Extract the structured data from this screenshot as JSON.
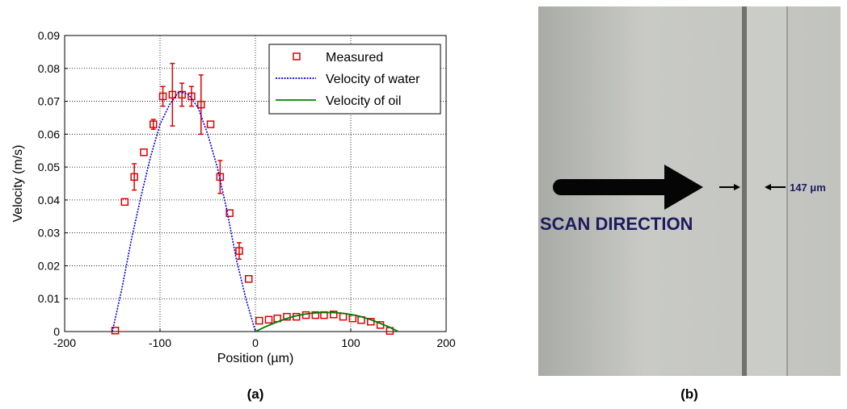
{
  "chart_data": {
    "type": "line",
    "xlabel": "Position (µm)",
    "ylabel": "Velocity (m/s)",
    "xlim": [
      -200,
      200
    ],
    "xticks": [
      -200,
      -100,
      0,
      100,
      200
    ],
    "ylim": [
      0,
      0.09
    ],
    "yticks": [
      0,
      0.01,
      0.02,
      0.03,
      0.04,
      0.05,
      0.06,
      0.07,
      0.08,
      0.09
    ],
    "grid": true,
    "legend": "upper right",
    "series": [
      {
        "name": "Measured",
        "type": "scatter",
        "color": "#e00000",
        "x": [
          -147,
          -137,
          -127,
          -117,
          -107,
          -97,
          -87,
          -77,
          -67,
          -57,
          -47,
          -37,
          -27,
          -17,
          -7,
          4,
          14,
          23,
          33,
          43,
          53,
          63,
          72,
          82,
          92,
          102,
          111,
          121,
          131,
          141
        ],
        "values": [
          0.0003,
          0.0394,
          0.047,
          0.0545,
          0.063,
          0.0715,
          0.072,
          0.072,
          0.0715,
          0.069,
          0.063,
          0.047,
          0.036,
          0.0245,
          0.016,
          0.0033,
          0.0036,
          0.004,
          0.0045,
          0.0045,
          0.005,
          0.005,
          0.005,
          0.0052,
          0.0045,
          0.004,
          0.0035,
          0.003,
          0.002,
          0.0002
        ],
        "errors": [
          null,
          null,
          0.004,
          null,
          0.0015,
          0.003,
          0.0095,
          0.0035,
          0.003,
          0.009,
          null,
          0.005,
          null,
          0.0025,
          null,
          null,
          null,
          null,
          null,
          null,
          null,
          null,
          null,
          null,
          null,
          null,
          null,
          null,
          null,
          null
        ]
      },
      {
        "name": "Velocity of water",
        "type": "line",
        "color": "#0000e0",
        "dash": true,
        "x": [
          -150,
          -140,
          -130,
          -120,
          -110,
          -100,
          -90,
          -80,
          -70,
          -60,
          -50,
          -40,
          -30,
          -20,
          -10,
          0,
          10,
          20,
          30,
          40,
          50,
          60,
          70,
          80,
          90,
          100,
          110,
          120,
          130,
          140,
          150
        ],
        "values": [
          0,
          0.013,
          0.028,
          0.041,
          0.053,
          0.063,
          0.069,
          0.073,
          0.072,
          0.068,
          0.06,
          0.05,
          0.037,
          0.022,
          0.01,
          0,
          0.0014,
          0.0026,
          0.0037,
          0.0046,
          0.0052,
          0.0056,
          0.0058,
          0.0058,
          0.0056,
          0.0052,
          0.0046,
          0.0037,
          0.0026,
          0.0014,
          0
        ]
      },
      {
        "name": "Velocity of oil",
        "type": "line",
        "color": "#008000",
        "dash": false,
        "x": [
          0,
          10,
          20,
          30,
          40,
          50,
          60,
          70,
          80,
          90,
          100,
          110,
          120,
          130,
          140,
          150
        ],
        "values": [
          0,
          0.0014,
          0.0026,
          0.0037,
          0.0046,
          0.0052,
          0.0056,
          0.0058,
          0.0058,
          0.0056,
          0.0052,
          0.0046,
          0.0037,
          0.0026,
          0.0014,
          0
        ]
      }
    ]
  },
  "image": {
    "scan_label": "SCAN DIRECTION",
    "width_label": "147 μm"
  },
  "captions": [
    "(a)",
    "(b)"
  ]
}
